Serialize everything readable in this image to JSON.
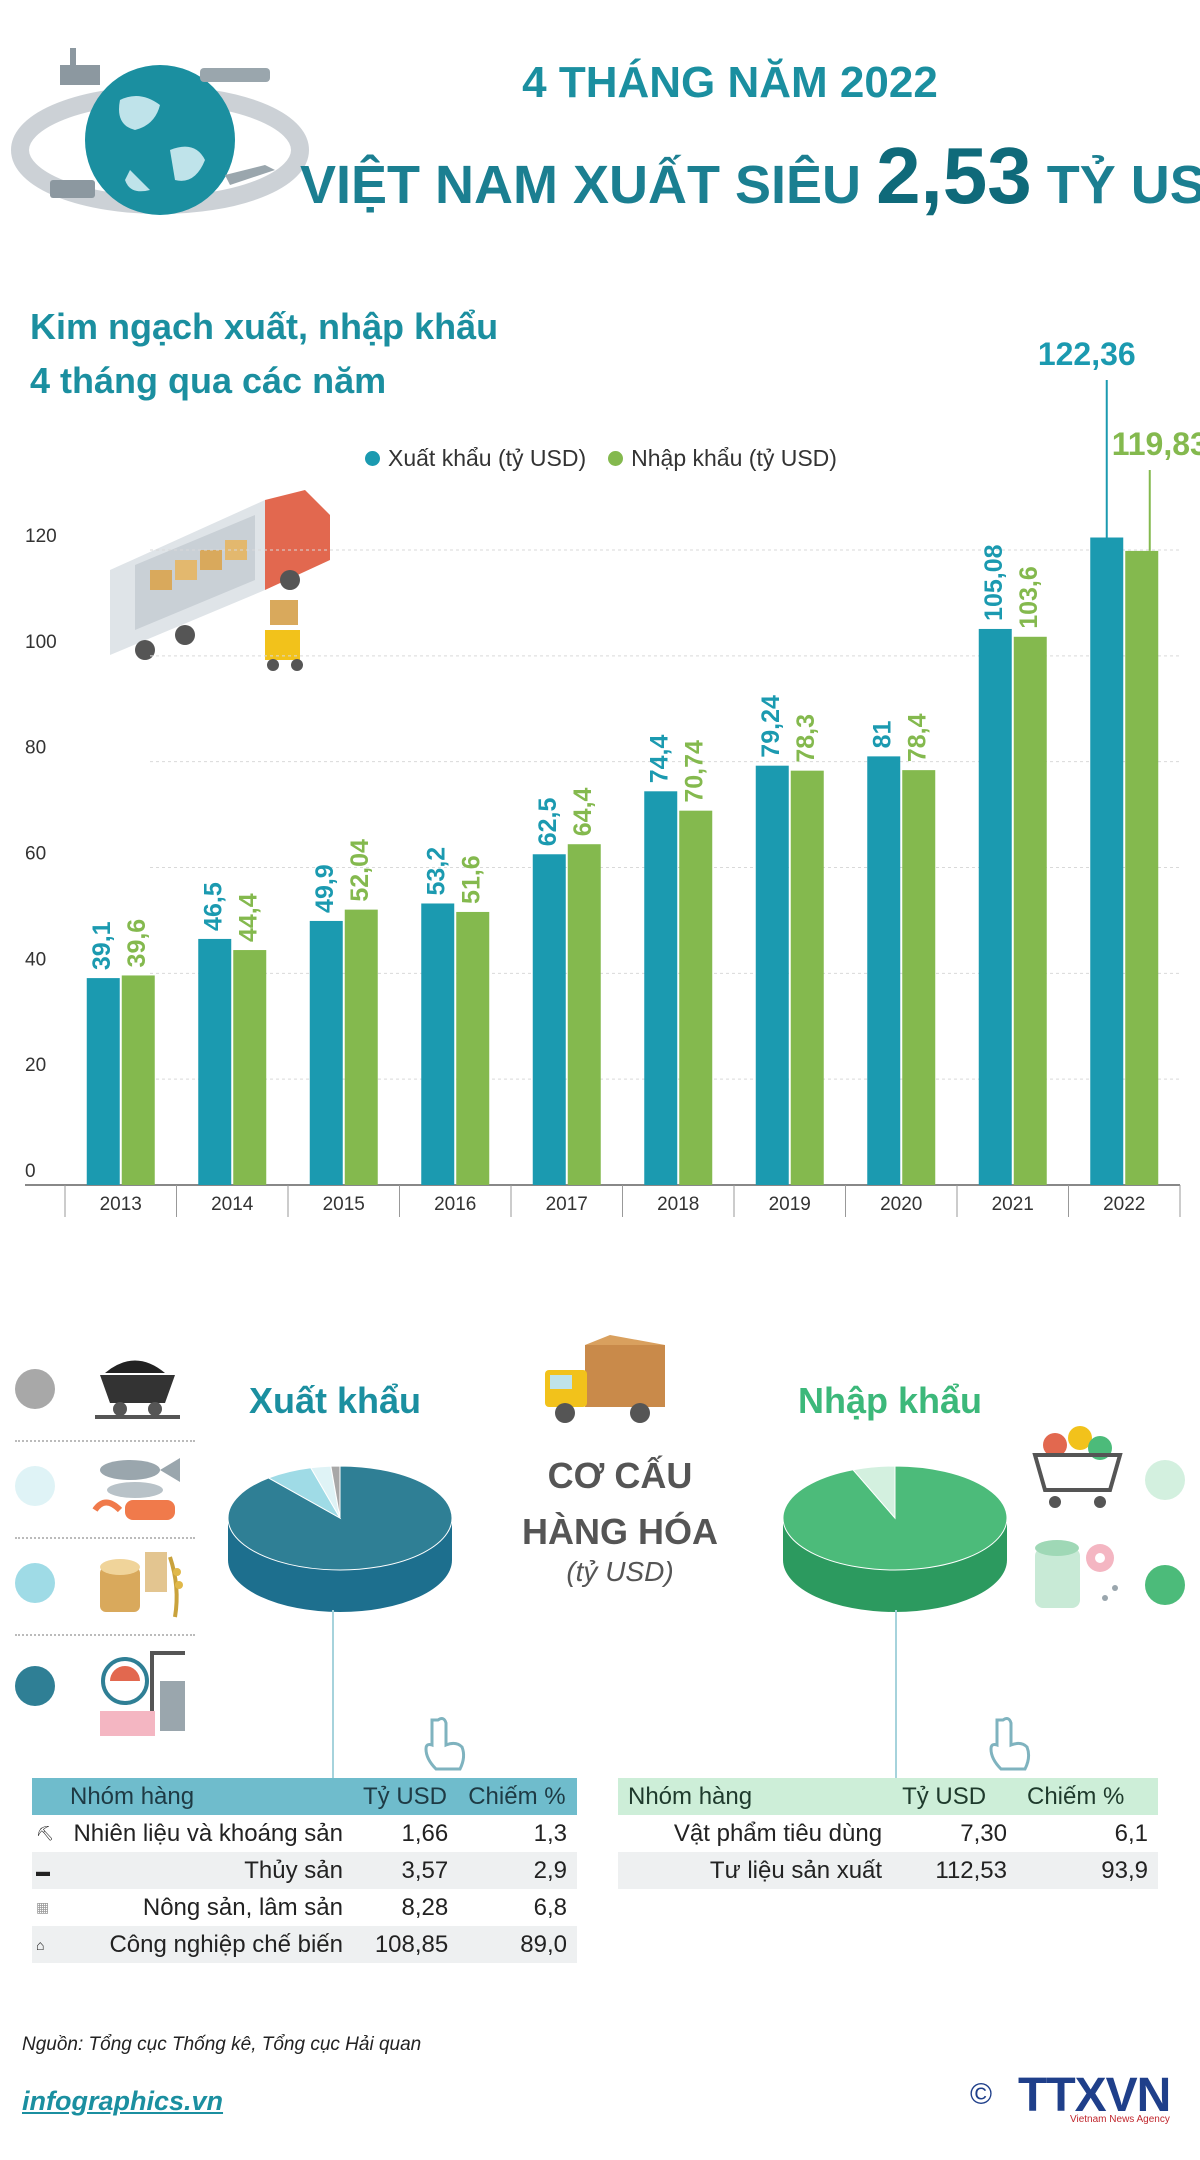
{
  "header": {
    "title_line1": "4 THÁNG NĂM 2022",
    "title_line2_prefix": "VIỆT NAM XUẤT SIÊU",
    "title_line2_value": "2,53",
    "title_line2_suffix": "TỶ USD"
  },
  "chart_section": {
    "subtitle_line1": "Kim ngạch xuất, nhập khẩu",
    "subtitle_line2": "4 tháng qua các năm"
  },
  "colors": {
    "export": "#1b9ab0",
    "import": "#84b94e",
    "export_pie": "#2a86ad",
    "import_pie": "#3cb87a"
  },
  "chart_data": {
    "type": "bar",
    "categories": [
      "2013",
      "2014",
      "2015",
      "2016",
      "2017",
      "2018",
      "2019",
      "2020",
      "2021",
      "2022"
    ],
    "series": [
      {
        "name": "Xuất khẩu (tỷ USD)",
        "values": [
          39.1,
          46.5,
          49.9,
          53.2,
          62.5,
          74.4,
          79.24,
          81,
          105.08,
          122.36
        ],
        "labels": [
          "39,1",
          "46,5",
          "49,9",
          "53,2",
          "62,5",
          "74,4",
          "79,24",
          "81",
          "105,08",
          "122,36"
        ]
      },
      {
        "name": "Nhập khẩu (tỷ USD)",
        "values": [
          39.6,
          44.4,
          52.04,
          51.6,
          64.4,
          70.74,
          78.3,
          78.4,
          103.6,
          119.83
        ],
        "labels": [
          "39,6",
          "44,4",
          "52,04",
          "51,6",
          "64,4",
          "70,74",
          "78,3",
          "78,4",
          "103,6",
          "119,83"
        ]
      }
    ],
    "yticks": [
      "0",
      "20",
      "40",
      "60",
      "80",
      "100",
      "120"
    ],
    "ylim": [
      0,
      120
    ],
    "grid": true,
    "legend_position": "top"
  },
  "structure": {
    "center_title_line1": "CƠ CẤU",
    "center_title_line2": "HÀNG HÓA",
    "center_unit": "(tỷ USD)",
    "export": {
      "title": "Xuất khẩu",
      "headers": [
        "Nhóm hàng",
        "Tỷ USD",
        "Chiếm %"
      ],
      "rows": [
        {
          "name": "Nhiên liệu và khoáng sản",
          "value": "1,66",
          "pct": "1,3",
          "color": "#a8a8a8"
        },
        {
          "name": "Thủy sản",
          "value": "3,57",
          "pct": "2,9",
          "color": "#dff3f6"
        },
        {
          "name": "Nông sản, lâm sản",
          "value": "8,28",
          "pct": "6,8",
          "color": "#9fdbe6"
        },
        {
          "name": "Công nghiệp chế biến",
          "value": "108,85",
          "pct": "89,0",
          "color": "#2f7f95"
        }
      ]
    },
    "import": {
      "title": "Nhập khẩu",
      "headers": [
        "Nhóm hàng",
        "Tỷ USD",
        "Chiếm %"
      ],
      "rows": [
        {
          "name": "Vật phẩm tiêu dùng",
          "value": "7,30",
          "pct": "6,1",
          "color": "#d3f0df"
        },
        {
          "name": "Tư liệu sản xuất",
          "value": "112,53",
          "pct": "93,9",
          "color": "#4cbb7a"
        }
      ]
    }
  },
  "footer": {
    "source": "Nguồn: Tổng cục Thống kê, Tổng cục Hải quan",
    "site": "infographics.vn",
    "copyright": "©",
    "brand": "TTXVN",
    "brand_sub": "Vietnam News Agency"
  }
}
